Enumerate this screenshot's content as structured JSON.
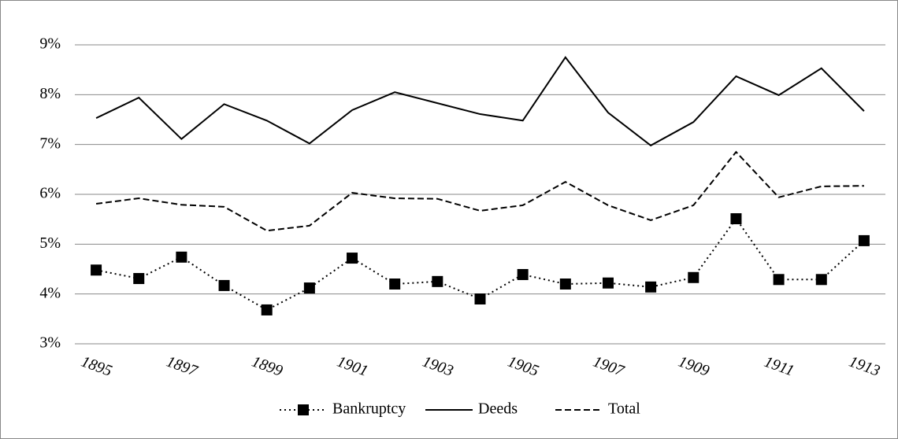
{
  "chart_data": {
    "type": "line",
    "categories": [
      "1895",
      null,
      "1897",
      null,
      "1899",
      null,
      "1901",
      null,
      "1903",
      null,
      "1905",
      null,
      "1907",
      null,
      "1909",
      null,
      "1911",
      null,
      "1913"
    ],
    "series": [
      {
        "name": "Bankruptcy",
        "color": "#000000",
        "dash": "dotted",
        "marker": "square",
        "values": [
          4.48,
          4.31,
          4.74,
          4.17,
          3.68,
          4.12,
          4.72,
          4.2,
          4.25,
          3.9,
          4.39,
          4.2,
          4.22,
          4.14,
          4.33,
          5.51,
          4.29,
          4.29,
          5.07
        ]
      },
      {
        "name": "Deeds",
        "color": "#000000",
        "dash": "solid",
        "values": [
          7.53,
          7.94,
          7.11,
          7.81,
          7.48,
          7.02,
          7.69,
          8.05,
          7.83,
          7.61,
          7.48,
          8.75,
          7.64,
          6.98,
          7.45,
          8.37,
          7.99,
          8.53,
          7.67
        ]
      },
      {
        "name": "Total",
        "color": "#000000",
        "dash": "dashed",
        "values": [
          5.81,
          5.92,
          5.79,
          5.75,
          5.27,
          5.37,
          6.03,
          5.92,
          5.91,
          5.67,
          5.78,
          6.25,
          5.78,
          5.48,
          5.78,
          6.85,
          5.94,
          6.16,
          6.17
        ]
      }
    ],
    "ylim": [
      3,
      9
    ],
    "yticks": [
      {
        "value": 3,
        "label": "3%"
      },
      {
        "value": 4,
        "label": "4%"
      },
      {
        "value": 5,
        "label": "5%"
      },
      {
        "value": 6,
        "label": "6%"
      },
      {
        "value": 7,
        "label": "7%"
      },
      {
        "value": 8,
        "label": "8%"
      },
      {
        "value": 9,
        "label": "9%"
      }
    ],
    "grid": true,
    "legend": "bottom"
  }
}
